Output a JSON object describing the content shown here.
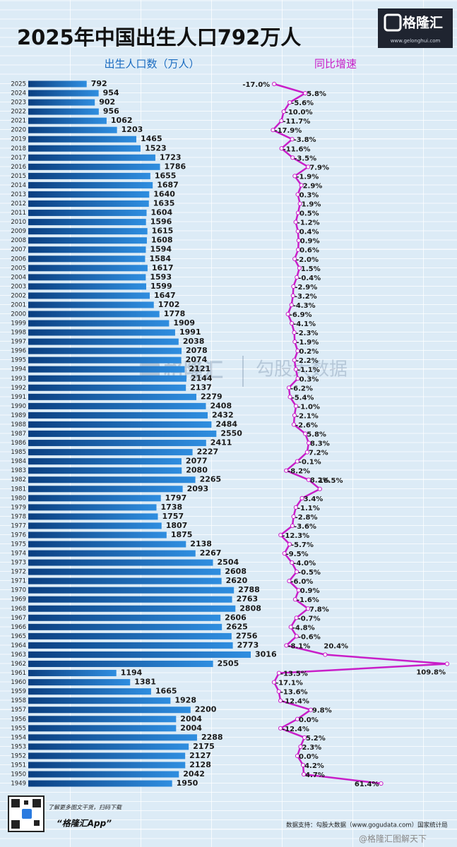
{
  "chart_data": {
    "type": "bar",
    "title": "2025年中国出生人口792万人",
    "categories": [
      "2025",
      "2024",
      "2023",
      "2022",
      "2021",
      "2020",
      "2019",
      "2018",
      "2017",
      "2016",
      "2015",
      "2014",
      "2013",
      "2012",
      "2011",
      "2010",
      "2009",
      "2008",
      "2007",
      "2006",
      "2005",
      "2004",
      "2003",
      "2002",
      "2001",
      "2000",
      "1999",
      "1998",
      "1997",
      "1996",
      "1995",
      "1994",
      "1993",
      "1992",
      "1991",
      "1990",
      "1989",
      "1988",
      "1987",
      "1986",
      "1985",
      "1984",
      "1983",
      "1982",
      "1981",
      "1980",
      "1979",
      "1978",
      "1977",
      "1976",
      "1975",
      "1974",
      "1973",
      "1972",
      "1971",
      "1970",
      "1969",
      "1968",
      "1967",
      "1966",
      "1965",
      "1964",
      "1963",
      "1962",
      "1961",
      "1960",
      "1959",
      "1958",
      "1957",
      "1956",
      "1955",
      "1954",
      "1953",
      "1952",
      "1951",
      "1950",
      "1949"
    ],
    "series": [
      {
        "name": "出生人口数（万人）",
        "color": "#1a6bc0",
        "values": [
          792,
          954,
          902,
          956,
          1062,
          1203,
          1465,
          1523,
          1723,
          1786,
          1655,
          1687,
          1640,
          1635,
          1604,
          1596,
          1615,
          1608,
          1594,
          1584,
          1617,
          1593,
          1599,
          1647,
          1702,
          1778,
          1909,
          1991,
          2038,
          2078,
          2074,
          2121,
          2144,
          2137,
          2279,
          2408,
          2432,
          2484,
          2550,
          2411,
          2227,
          2077,
          2080,
          2265,
          2093,
          1797,
          1738,
          1757,
          1807,
          1875,
          2138,
          2267,
          2504,
          2608,
          2620,
          2788,
          2763,
          2808,
          2606,
          2625,
          2756,
          2773,
          3016,
          2505,
          1194,
          1381,
          1665,
          1928,
          2200,
          2004,
          2004,
          2288,
          2175,
          2127,
          2128,
          2042,
          1950
        ]
      },
      {
        "name": "同比增速",
        "color": "#c81ec8",
        "type": "line",
        "values": [
          -17.0,
          5.8,
          -5.6,
          -10.0,
          -11.7,
          -17.9,
          -3.8,
          -11.6,
          -3.5,
          7.9,
          -1.9,
          2.9,
          0.3,
          1.9,
          0.5,
          -1.2,
          0.4,
          0.9,
          0.6,
          -2.0,
          1.5,
          -0.4,
          -2.9,
          -3.2,
          -4.3,
          -6.9,
          -4.1,
          -2.3,
          -1.9,
          0.2,
          -2.2,
          -1.1,
          0.3,
          -6.2,
          -5.4,
          -1.0,
          -2.1,
          -2.6,
          5.8,
          8.3,
          7.2,
          -0.1,
          -8.2,
          8.2,
          16.5,
          3.4,
          -1.1,
          -2.8,
          -3.6,
          -12.3,
          -5.7,
          -9.5,
          -4.0,
          -0.5,
          -6.0,
          0.9,
          -1.6,
          7.8,
          -0.7,
          -4.8,
          -0.6,
          -8.1,
          20.4,
          109.8,
          -13.5,
          -17.1,
          -13.6,
          -12.4,
          9.8,
          0.0,
          -12.4,
          5.2,
          2.3,
          0.0,
          4.2,
          4.7,
          61.4
        ],
        "value_labels": [
          "-17.0%",
          "5.8%",
          "-5.6%",
          "-10.0%",
          "-11.7%",
          "-17.9%",
          "-3.8%",
          "-11.6%",
          "-3.5%",
          "7.9%",
          "-1.9%",
          "2.9%",
          "0.3%",
          "1.9%",
          "0.5%",
          "-1.2%",
          "0.4%",
          "0.9%",
          "0.6%",
          "-2.0%",
          "1.5%",
          "-0.4%",
          "-2.9%",
          "-3.2%",
          "-4.3%",
          "-6.9%",
          "-4.1%",
          "-2.3%",
          "-1.9%",
          "0.2%",
          "-2.2%",
          "-1.1%",
          "0.3%",
          "-6.2%",
          "-5.4%",
          "-1.0%",
          "-2.1%",
          "-2.6%",
          "5.8%",
          "8.3%",
          "7.2%",
          "-0.1%",
          "-8.2%",
          "8.2%",
          "16.5%",
          "3.4%",
          "-1.1%",
          "-2.8%",
          "-3.6%",
          "-12.3%",
          "-5.7%",
          "-9.5%",
          "-4.0%",
          "-0.5%",
          "-6.0%",
          "0.9%",
          "-1.6%",
          "7.8%",
          "-0.7%",
          "-4.8%",
          "-0.6%",
          "-8.1%",
          "20.4%",
          "109.8%",
          "-13.5%",
          "-17.1%",
          "-13.6%",
          "-12.4%",
          "9.8%",
          "0.0%",
          "-12.4%",
          "5.2%",
          "2.3%",
          "0.0%",
          "4.2%",
          "4.7%",
          "61.4%"
        ]
      }
    ]
  },
  "logo": {
    "name": "格隆汇",
    "url": "www.gelonghui.com"
  },
  "watermark": {
    "left": "格隆汇",
    "right": "勾股大数据",
    "weibo": "@格隆汇图解天下"
  },
  "footer": {
    "prompt": "了解更多图文干货，扫码下载",
    "app": "“格隆汇App”",
    "source": "数据支持：勾股大数据（www.gogudata.com）国家统计局"
  }
}
